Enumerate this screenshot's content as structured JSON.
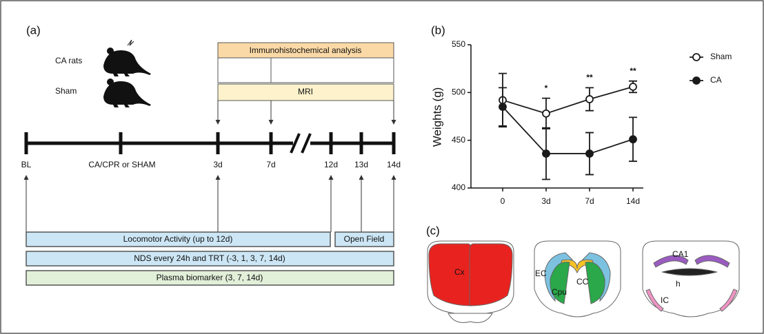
{
  "panel_a": {
    "label": "(a)",
    "groups": [
      "CA rats",
      "Sham"
    ],
    "top_boxes": [
      "Immunohistochemical analysis",
      "MRI"
    ],
    "timepoints": [
      "BL",
      "CA/CPR or SHAM",
      "3d",
      "7d",
      "12d",
      "13d",
      "14d"
    ],
    "bottom_boxes": [
      "Locomotor Activity (up to 12d)",
      "Open Field",
      "NDS every 24h and TRT (-3, 1, 3, 7, 14d)",
      "Plasma biomarker (3, 7, 14d)"
    ]
  },
  "chart_data": {
    "type": "line",
    "label": "(b)",
    "ylabel": "Weights (g)",
    "categories": [
      "0",
      "3d",
      "7d",
      "14d"
    ],
    "ylim": [
      400,
      550
    ],
    "yticks": [
      400,
      450,
      500,
      550
    ],
    "significance": [
      null,
      "*",
      "**",
      "**"
    ],
    "series": [
      {
        "name": "Sham",
        "color": "#1a1a1a",
        "marker": "open",
        "values": [
          492,
          478,
          493,
          506
        ],
        "errors": [
          28,
          16,
          12,
          6
        ]
      },
      {
        "name": "CA",
        "color": "#1a1a1a",
        "marker": "filled",
        "values": [
          485,
          436,
          436,
          451
        ],
        "errors": [
          20,
          27,
          22,
          23
        ]
      }
    ]
  },
  "panel_c": {
    "label": "(c)",
    "regions": [
      "Cx",
      "EC",
      "CC",
      "Cpu",
      "CA1",
      "h",
      "IC"
    ]
  }
}
